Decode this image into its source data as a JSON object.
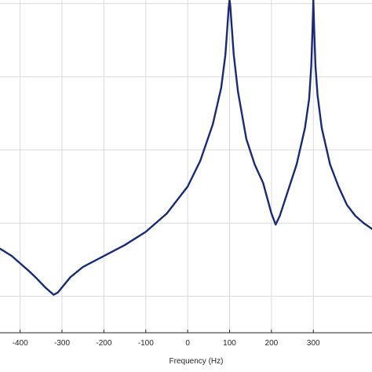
{
  "chart_data": {
    "type": "line",
    "title": "",
    "xlabel": "Frequency (Hz)",
    "ylabel": "",
    "xlim": [
      -448,
      440
    ],
    "ylim": [
      0.0,
      4.55
    ],
    "x_ticks": [
      -400,
      -300,
      -200,
      -100,
      0,
      100,
      200,
      300
    ],
    "x_tick_labels": [
      "-400",
      "-300",
      "-200",
      "-100",
      "0",
      "100",
      "200",
      "300"
    ],
    "y_gridlines": [
      0.5,
      1.5,
      2.5,
      3.5,
      4.5
    ],
    "grid": true,
    "colors": {
      "series": "#1a2a7a",
      "grid": "#d9d9d9",
      "axis": "#262626"
    },
    "series": [
      {
        "name": "",
        "x": [
          -448,
          -420,
          -400,
          -380,
          -360,
          -340,
          -320,
          -310,
          -300,
          -280,
          -250,
          -200,
          -150,
          -100,
          -50,
          0,
          30,
          60,
          80,
          90,
          95,
          98,
          100,
          102,
          105,
          110,
          120,
          140,
          160,
          180,
          200,
          210,
          220,
          240,
          260,
          280,
          290,
          295,
          298,
          300,
          302,
          305,
          310,
          320,
          340,
          360,
          380,
          400,
          420,
          440
        ],
        "y": [
          1.15,
          1.05,
          0.95,
          0.85,
          0.74,
          0.62,
          0.52,
          0.55,
          0.62,
          0.76,
          0.9,
          1.05,
          1.2,
          1.38,
          1.63,
          2.0,
          2.35,
          2.85,
          3.35,
          3.8,
          4.2,
          4.45,
          4.55,
          4.45,
          4.2,
          3.8,
          3.3,
          2.65,
          2.3,
          2.05,
          1.63,
          1.48,
          1.6,
          1.95,
          2.3,
          2.8,
          3.2,
          3.65,
          4.15,
          4.55,
          4.15,
          3.65,
          3.25,
          2.8,
          2.3,
          2.0,
          1.75,
          1.6,
          1.5,
          1.42
        ]
      }
    ]
  }
}
